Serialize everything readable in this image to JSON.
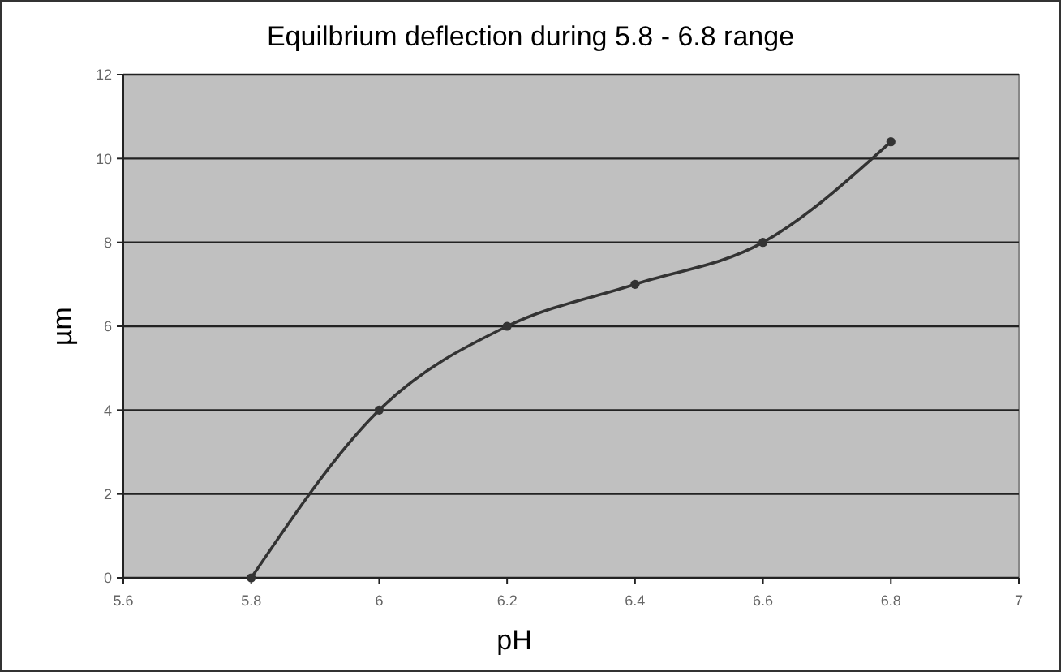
{
  "chart_data": {
    "type": "line",
    "title": "Equilbrium deflection during 5.8 - 6.8 range",
    "xlabel": "pH",
    "ylabel": "µm",
    "x": [
      5.8,
      6,
      6.2,
      6.4,
      6.6,
      6.8
    ],
    "series": [
      {
        "color": "#333333",
        "values": [
          0,
          4,
          6,
          7,
          8,
          10.4
        ]
      }
    ],
    "xlim": [
      5.6,
      7
    ],
    "xticks": [
      5.6,
      5.8,
      6,
      6.2,
      6.4,
      6.6,
      6.8,
      7
    ],
    "ylim": [
      0,
      12
    ],
    "yticks": [
      0,
      2,
      4,
      6,
      8,
      10,
      12
    ],
    "grid": "y",
    "marker": "circle",
    "line_style": "solid"
  }
}
